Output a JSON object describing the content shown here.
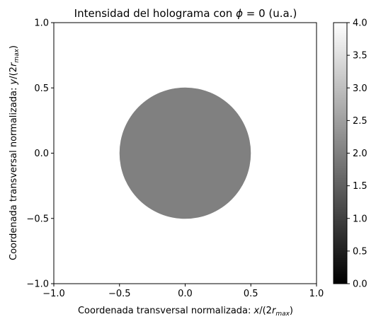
{
  "chart_data": {
    "type": "heatmap",
    "title": "Intensidad del holograma con ϕ = 0 (u.a.)",
    "xlabel": "Coordenada transversal normalizada: x/(2r_max)",
    "ylabel": "Coordenada transversal normalizada: y/(2r_max)",
    "xlim": [
      -1.0,
      1.0
    ],
    "ylim": [
      -1.0,
      1.0
    ],
    "xticks": [
      "−1.0",
      "−0.5",
      "0.0",
      "0.5",
      "1.0"
    ],
    "yticks": [
      "−1.0",
      "−0.5",
      "0.0",
      "0.5",
      "1.0"
    ],
    "xtick_values": [
      -1.0,
      -0.5,
      0.0,
      0.5,
      1.0
    ],
    "ytick_values": [
      -1.0,
      -0.5,
      0.0,
      0.5,
      1.0
    ],
    "colormap": "gray",
    "grid": false,
    "colorbar": {
      "range": [
        0.0,
        4.0
      ],
      "ticks": [
        "0.0",
        "0.5",
        "1.0",
        "1.5",
        "2.0",
        "2.5",
        "3.0",
        "3.5",
        "4.0"
      ],
      "tick_values": [
        0.0,
        0.5,
        1.0,
        1.5,
        2.0,
        2.5,
        3.0,
        3.5,
        4.0
      ]
    },
    "field": {
      "shape": "disk",
      "center": [
        0.0,
        0.0
      ],
      "radius": 0.5,
      "inside_value": 2.0,
      "outside_value": 4.0
    }
  }
}
